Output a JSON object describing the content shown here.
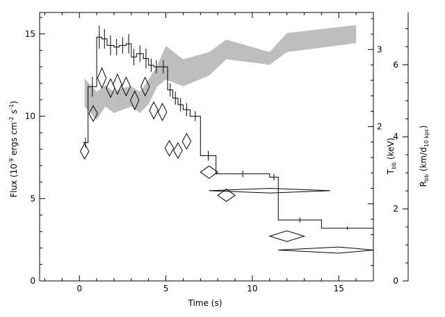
{
  "chart_data": {
    "type": "line",
    "xlabel": "Time (s)",
    "ylabel": {
      "main": "Flux (10",
      "exp1": "-9",
      "mid": " ergs cm",
      "exp2": "-2",
      "s": " s",
      "exp3": "-1",
      "close": ")"
    },
    "ylabel_temp": {
      "main": "T",
      "sub": "bb",
      "rest": " (keV)"
    },
    "ylabel_radius": {
      "main": "R",
      "sub1": "bb",
      "mid": " (km/d",
      "sub2": "10 kpc",
      "close": ")"
    },
    "xlim": [
      -2.3,
      17
    ],
    "ylim": [
      0,
      16.3
    ],
    "temp_lim": [
      0,
      3.48
    ],
    "radius_lim": [
      0,
      7.45
    ],
    "x_ticks": {
      "values": [
        0,
        5,
        10,
        15
      ],
      "labels": [
        "0",
        "5",
        "10",
        "15"
      ]
    },
    "y_ticks": {
      "values": [
        0,
        5,
        10,
        15
      ],
      "labels": [
        "0",
        "5",
        "10",
        "15"
      ]
    },
    "temp_ticks": {
      "values": [
        2,
        3
      ],
      "labels": [
        "2",
        "3"
      ]
    },
    "radius_ticks": {
      "values": [
        0,
        2,
        4,
        6
      ],
      "labels": [
        "0",
        "2",
        "4",
        "6"
      ]
    },
    "series": [
      {
        "type": "step",
        "bins": [
          {
            "x0": 0.2,
            "x1": 0.5,
            "y": 8.4,
            "err": 0.3
          },
          {
            "x0": 0.5,
            "x1": 1.0,
            "y": 11.8,
            "err": 0.6
          },
          {
            "x0": 1.0,
            "x1": 1.3,
            "y": 14.8,
            "err": 0.7
          },
          {
            "x0": 1.3,
            "x1": 1.6,
            "y": 14.7,
            "err": 0.6
          },
          {
            "x0": 1.6,
            "x1": 2.0,
            "y": 14.3,
            "err": 0.6
          },
          {
            "x0": 2.0,
            "x1": 2.3,
            "y": 14.2,
            "err": 0.5
          },
          {
            "x0": 2.3,
            "x1": 2.7,
            "y": 14.3,
            "err": 0.5
          },
          {
            "x0": 2.7,
            "x1": 3.0,
            "y": 14.4,
            "err": 0.6
          },
          {
            "x0": 3.0,
            "x1": 3.3,
            "y": 13.6,
            "err": 0.5
          },
          {
            "x0": 3.3,
            "x1": 3.7,
            "y": 13.8,
            "err": 0.5
          },
          {
            "x0": 3.7,
            "x1": 4.0,
            "y": 13.5,
            "err": 0.6
          },
          {
            "x0": 4.0,
            "x1": 4.3,
            "y": 13.1,
            "err": 0.4
          },
          {
            "x0": 4.3,
            "x1": 4.6,
            "y": 13.0,
            "err": 0.4
          },
          {
            "x0": 4.6,
            "x1": 5.1,
            "y": 13.0,
            "err": 0.4
          },
          {
            "x0": 5.1,
            "x1": 5.4,
            "y": 11.6,
            "err": 0.4
          },
          {
            "x0": 5.4,
            "x1": 5.7,
            "y": 11.1,
            "err": 0.4
          },
          {
            "x0": 5.7,
            "x1": 6.0,
            "y": 10.7,
            "err": 0.4
          },
          {
            "x0": 6.0,
            "x1": 6.4,
            "y": 10.4,
            "err": 0.4
          },
          {
            "x0": 6.4,
            "x1": 7.0,
            "y": 10.0,
            "err": 0.3
          },
          {
            "x0": 7.0,
            "x1": 7.9,
            "y": 7.6,
            "err": 0.3
          },
          {
            "x0": 7.9,
            "x1": 11.0,
            "y": 6.5,
            "err": 0.2
          },
          {
            "x0": 11.0,
            "x1": 11.5,
            "y": 6.3,
            "err": 0.2
          },
          {
            "x0": 11.5,
            "x1": 14.0,
            "y": 3.7,
            "err": 0.15
          },
          {
            "x0": 14.0,
            "x1": 17.0,
            "y": 3.2,
            "err": 0.1
          }
        ]
      },
      {
        "type": "diamond",
        "axis": "temperature",
        "points": [
          {
            "x": 0.3,
            "y": 1.68,
            "dx": 0.25,
            "dy": 0.1
          },
          {
            "x": 0.8,
            "y": 2.17,
            "dx": 0.25,
            "dy": 0.1
          },
          {
            "x": 1.3,
            "y": 2.63,
            "dx": 0.25,
            "dy": 0.13
          },
          {
            "x": 1.8,
            "y": 2.5,
            "dx": 0.25,
            "dy": 0.12
          },
          {
            "x": 2.2,
            "y": 2.55,
            "dx": 0.25,
            "dy": 0.13
          },
          {
            "x": 2.7,
            "y": 2.52,
            "dx": 0.25,
            "dy": 0.12
          },
          {
            "x": 3.2,
            "y": 2.34,
            "dx": 0.25,
            "dy": 0.12
          },
          {
            "x": 3.8,
            "y": 2.52,
            "dx": 0.25,
            "dy": 0.12
          },
          {
            "x": 4.3,
            "y": 2.21,
            "dx": 0.25,
            "dy": 0.11
          },
          {
            "x": 4.8,
            "y": 2.19,
            "dx": 0.25,
            "dy": 0.11
          },
          {
            "x": 5.2,
            "y": 1.72,
            "dx": 0.25,
            "dy": 0.1
          },
          {
            "x": 5.7,
            "y": 1.69,
            "dx": 0.25,
            "dy": 0.1
          },
          {
            "x": 6.2,
            "y": 1.81,
            "dx": 0.25,
            "dy": 0.1
          },
          {
            "x": 7.5,
            "y": 1.41,
            "dx": 0.5,
            "dy": 0.08
          },
          {
            "x": 8.5,
            "y": 1.11,
            "dx": 0.5,
            "dy": 0.08
          },
          {
            "x": 11.0,
            "y": 1.17,
            "dx": 3.5,
            "dy": 0.03
          },
          {
            "x": 12.0,
            "y": 0.58,
            "dx": 1.0,
            "dy": 0.07
          },
          {
            "x": 15.0,
            "y": 0.4,
            "dx": 3.5,
            "dy": 0.04
          }
        ]
      },
      {
        "type": "band",
        "axis": "radius",
        "points": [
          {
            "x": 0.3,
            "lo": 4.84,
            "hi": 5.62
          },
          {
            "x": 1.0,
            "lo": 4.47,
            "hi": 5.25
          },
          {
            "x": 1.5,
            "lo": 4.84,
            "hi": 5.43
          },
          {
            "x": 2.0,
            "lo": 4.66,
            "hi": 5.25
          },
          {
            "x": 2.5,
            "lo": 4.75,
            "hi": 5.36
          },
          {
            "x": 3.0,
            "lo": 4.84,
            "hi": 5.4
          },
          {
            "x": 3.5,
            "lo": 4.66,
            "hi": 5.25
          },
          {
            "x": 4.0,
            "lo": 4.9,
            "hi": 5.59
          },
          {
            "x": 4.5,
            "lo": 5.4,
            "hi": 5.98
          },
          {
            "x": 5.0,
            "lo": 5.59,
            "hi": 6.52
          },
          {
            "x": 6.0,
            "lo": 5.4,
            "hi": 6.15
          },
          {
            "x": 7.5,
            "lo": 5.7,
            "hi": 6.35
          },
          {
            "x": 8.5,
            "lo": 6.15,
            "hi": 6.7
          },
          {
            "x": 11.0,
            "lo": 6.0,
            "hi": 6.35
          },
          {
            "x": 12.0,
            "lo": 6.35,
            "hi": 6.88
          },
          {
            "x": 16.0,
            "lo": 6.6,
            "hi": 7.1
          }
        ],
        "color": "#bebebe"
      }
    ]
  }
}
